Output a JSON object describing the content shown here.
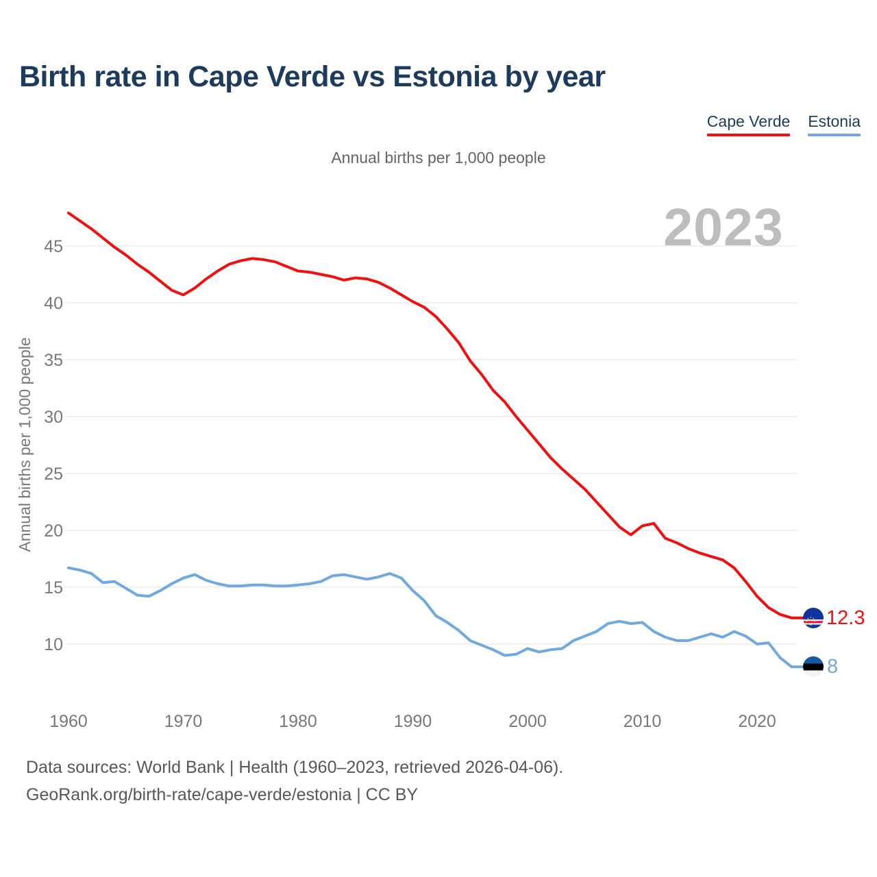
{
  "header": {
    "title": "Birth rate in Cape Verde vs Estonia by year",
    "subtitle": "Annual births per 1,000 people"
  },
  "legend": [
    {
      "label": "Cape Verde",
      "color": "#f01010"
    },
    {
      "label": "Estonia",
      "color": "#6fa9e1"
    }
  ],
  "watermark": "2023",
  "chart_data": {
    "type": "line",
    "title": "Birth rate in Cape Verde vs Estonia by year",
    "xlabel": "",
    "ylabel": "Annual births per 1,000 people",
    "x_start_year": 1960,
    "x_end_year": 2023,
    "xticks": [
      1960,
      1970,
      1980,
      1990,
      2000,
      2010,
      2020
    ],
    "yticks": [
      45,
      40,
      35,
      30,
      25,
      20,
      15,
      10
    ],
    "ylim": [
      7.5,
      48.5
    ],
    "grid": true,
    "legend_position": "top-right",
    "series": [
      {
        "name": "Cape Verde",
        "color": "#f01010",
        "end_label": "12.3",
        "end_flag": "cape-verde",
        "values": [
          47.9,
          47.2,
          46.5,
          45.7,
          44.9,
          44.2,
          43.4,
          42.7,
          41.9,
          41.1,
          40.7,
          41.3,
          42.1,
          42.8,
          43.4,
          43.7,
          43.9,
          43.8,
          43.6,
          43.2,
          42.8,
          42.7,
          42.5,
          42.3,
          42.0,
          42.2,
          42.1,
          41.8,
          41.3,
          40.7,
          40.1,
          39.6,
          38.8,
          37.7,
          36.5,
          34.9,
          33.7,
          32.3,
          31.3,
          30.0,
          28.8,
          27.6,
          26.4,
          25.4,
          24.5,
          23.6,
          22.5,
          21.4,
          20.3,
          19.6,
          20.4,
          20.6,
          19.3,
          18.9,
          18.4,
          18.0,
          17.7,
          17.4,
          16.7,
          15.5,
          14.2,
          13.2,
          12.6,
          12.3
        ]
      },
      {
        "name": "Estonia",
        "color": "#6fa9e1",
        "end_label": "8",
        "end_flag": "estonia",
        "values": [
          16.7,
          16.5,
          16.2,
          15.4,
          15.5,
          14.9,
          14.3,
          14.2,
          14.7,
          15.3,
          15.8,
          16.1,
          15.6,
          15.3,
          15.1,
          15.1,
          15.2,
          15.2,
          15.1,
          15.1,
          15.2,
          15.3,
          15.5,
          16.0,
          16.1,
          15.9,
          15.7,
          15.9,
          16.2,
          15.8,
          14.7,
          13.8,
          12.5,
          11.9,
          11.2,
          10.3,
          9.9,
          9.5,
          9.0,
          9.1,
          9.6,
          9.3,
          9.5,
          9.6,
          10.3,
          10.7,
          11.1,
          11.8,
          12.0,
          11.8,
          11.9,
          11.1,
          10.6,
          10.3,
          10.3,
          10.6,
          10.9,
          10.6,
          11.1,
          10.7,
          10.0,
          10.1,
          8.8,
          8.0
        ]
      }
    ]
  },
  "footer": {
    "line1": "Data sources: World Bank | Health (1960–2023, retrieved 2026-04-06).",
    "line2": "GeoRank.org/birth-rate/cape-verde/estonia | CC BY"
  }
}
